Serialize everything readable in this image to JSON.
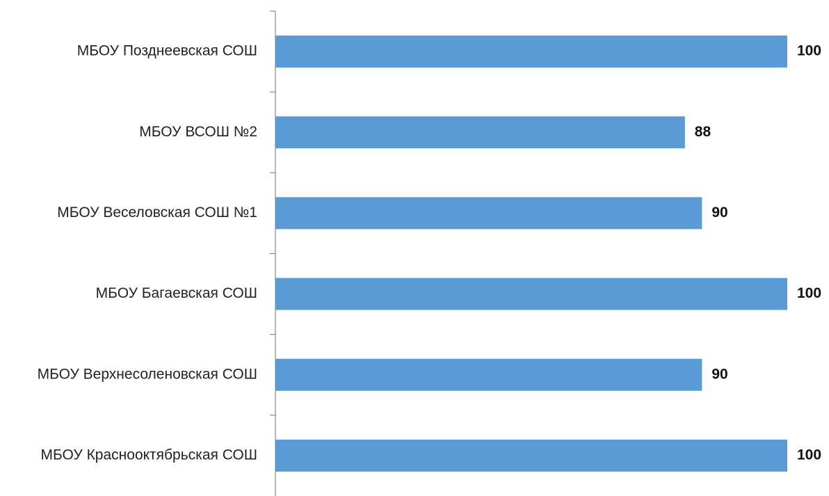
{
  "chart_data": {
    "type": "bar",
    "orientation": "horizontal",
    "categories": [
      "МБОУ Позднеевская СОШ",
      "МБОУ ВСОШ  №2",
      "МБОУ Веселовская СОШ №1",
      "МБОУ Багаевская СОШ",
      "МБОУ Верхнесоленовская  СОШ",
      "МБОУ Краснооктябрьская СОШ"
    ],
    "values": [
      100,
      88,
      90,
      100,
      90,
      100
    ],
    "data_labels": [
      "100",
      "88",
      "90",
      "100",
      "90",
      "100"
    ],
    "xlim": [
      40,
      100
    ],
    "bar_color": "#5B9BD5",
    "axis_color": "#888888",
    "grid": false,
    "legend": "none"
  }
}
